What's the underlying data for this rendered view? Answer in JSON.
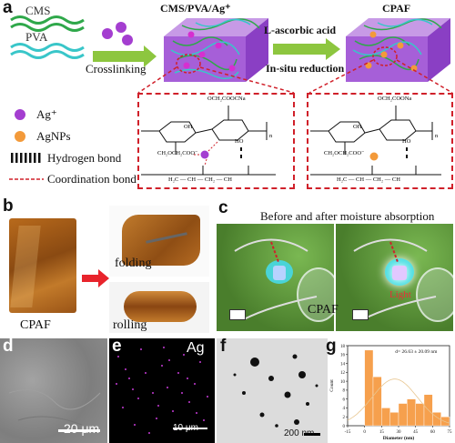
{
  "panels": {
    "a": "a",
    "b": "b",
    "c": "c",
    "d": "d",
    "e": "e",
    "f": "f",
    "g": "g"
  },
  "scheme": {
    "cms_label": "CMS",
    "pva_label": "PVA",
    "crosslinking_label": "Crosslinking",
    "composite_label": "CMS/PVA/Ag⁺",
    "reagent_label": "L-ascorbic acid",
    "reduction_label": "In-situ reduction",
    "product_label": "CPAF",
    "legend": [
      {
        "symbol": "ag-ion",
        "label": "Ag⁺"
      },
      {
        "symbol": "agnps",
        "label": "AgNPs"
      },
      {
        "symbol": "hydrogen-bond",
        "label": "Hydrogen bond"
      },
      {
        "symbol": "coordination-bond",
        "label": "Coordination bond"
      }
    ],
    "structure_left": {
      "carboxy_top": "OCH₂COOCNa",
      "carboxy_bottom": "CH₂OCH₂COO⁻",
      "oh": "OH",
      "ho": "HO",
      "o": "O",
      "n": "n",
      "pva_main": "H₂C — CH — CH₂ — CH"
    },
    "structure_right": {
      "carboxy_top": "OCH₂COONa",
      "carboxy_bottom": "CH₂OCH₂COO⁻",
      "oh": "OH",
      "ho": "HO",
      "o": "O",
      "n": "n",
      "pva_main": "H₂C — CH — CH₂ — CH"
    }
  },
  "film": {
    "main_label": "CPAF",
    "folding_label": "folding",
    "rolling_label": "rolling"
  },
  "moisture": {
    "title": "Before and after moisture absorption",
    "cpaf_label": "CPAF",
    "light_label": "Light"
  },
  "sem": {
    "scale_label": "20 μm"
  },
  "eds": {
    "element_label": "Ag",
    "scale_label": "10 μm"
  },
  "tem": {
    "scale_label": "200 nm"
  },
  "colors": {
    "accent_red": "#d0202a",
    "green_arrow": "#8dc63f",
    "purple": "#9b3fc7",
    "orange": "#f39a3a",
    "hist_bar": "#f6a04d"
  },
  "chart_data": {
    "type": "bar",
    "annotation": "d= 26.63 ± 20.09 nm",
    "xlabel": "Diameter (nm)",
    "ylabel": "Count",
    "x_ticks": [
      "-15",
      "0",
      "15",
      "30",
      "45",
      "60",
      "75"
    ],
    "y_ticks": [
      "0",
      "2",
      "4",
      "6",
      "8",
      "10",
      "12",
      "14",
      "16",
      "18"
    ],
    "xlim": [
      -15,
      75
    ],
    "ylim": [
      0,
      18
    ],
    "bin_width": 7.5,
    "categories": [
      "0",
      "7.5",
      "15",
      "22.5",
      "30",
      "37.5",
      "45",
      "52.5",
      "60",
      "67.5"
    ],
    "values": [
      17,
      11,
      4,
      3,
      5,
      6,
      5,
      7,
      3,
      2
    ],
    "fit_curve": "gaussian"
  }
}
